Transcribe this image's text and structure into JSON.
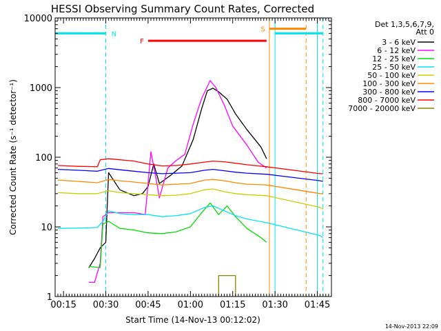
{
  "chart_data": {
    "type": "line",
    "title": "HESSI Observing Summary Count Rates, Corrected",
    "xlabel": "Start Time (14-Nov-13 00:12:02)",
    "ylabel": "Corrected Count Rate (s⁻¹ detector⁻¹)",
    "y_scale": "log",
    "ylim": [
      1,
      10000
    ],
    "xlim": [
      "00:12:02",
      "01:50:00"
    ],
    "x_ticks": [
      "00:15",
      "00:30",
      "00:45",
      "01:00",
      "01:15",
      "01:30",
      "01:45"
    ],
    "y_ticks": [
      "1",
      "10",
      "100",
      "1000",
      "10000"
    ],
    "legend_header": [
      "Det 1,3,5,6,7,9,",
      "Att 0"
    ],
    "legend_position": "right",
    "footer_date": "14-Nov-2013 22:09",
    "series": [
      {
        "name": "3 - 6 keV",
        "color": "#000000",
        "points": [
          [
            "00:24",
            2.6
          ],
          [
            "00:26",
            3.5
          ],
          [
            "00:28",
            5
          ],
          [
            "00:30",
            6
          ],
          [
            "00:31",
            60
          ],
          [
            "00:35",
            34
          ],
          [
            "00:40",
            28
          ],
          [
            "00:43",
            30
          ],
          [
            "00:45",
            38
          ],
          [
            "00:47",
            80
          ],
          [
            "00:49",
            42
          ],
          [
            "00:53",
            55
          ],
          [
            "00:57",
            75
          ],
          [
            "01:01",
            180
          ],
          [
            "01:04",
            500
          ],
          [
            "01:06",
            900
          ],
          [
            "01:08",
            980
          ],
          [
            "01:10",
            870
          ],
          [
            "01:13",
            680
          ],
          [
            "01:16",
            420
          ],
          [
            "01:20",
            250
          ],
          [
            "01:25",
            140
          ],
          [
            "01:27",
            95
          ]
        ]
      },
      {
        "name": "6 - 12 keV",
        "color": "#ff00ff",
        "points": [
          [
            "00:24",
            1.6
          ],
          [
            "00:26",
            1.6
          ],
          [
            "00:28",
            3
          ],
          [
            "00:29",
            14
          ],
          [
            "00:31",
            16
          ],
          [
            "00:35",
            16
          ],
          [
            "00:40",
            16
          ],
          [
            "00:44",
            15
          ],
          [
            "00:46",
            120
          ],
          [
            "00:48",
            45
          ],
          [
            "00:49",
            26
          ],
          [
            "00:52",
            70
          ],
          [
            "00:55",
            90
          ],
          [
            "00:58",
            110
          ],
          [
            "01:01",
            300
          ],
          [
            "01:04",
            700
          ],
          [
            "01:07",
            1260
          ],
          [
            "01:09",
            1000
          ],
          [
            "01:12",
            560
          ],
          [
            "01:15",
            280
          ],
          [
            "01:20",
            150
          ],
          [
            "01:24",
            85
          ],
          [
            "01:27",
            70
          ]
        ]
      },
      {
        "name": "12 - 25 keV",
        "color": "#00dd00",
        "points": [
          [
            "00:24",
            2.7
          ],
          [
            "00:28",
            2.6
          ],
          [
            "00:29",
            11
          ],
          [
            "00:31",
            12
          ],
          [
            "00:35",
            9.5
          ],
          [
            "00:40",
            9
          ],
          [
            "00:45",
            8.2
          ],
          [
            "00:50",
            8
          ],
          [
            "00:55",
            8.5
          ],
          [
            "01:00",
            10
          ],
          [
            "01:04",
            16
          ],
          [
            "01:07",
            22
          ],
          [
            "01:10",
            15
          ],
          [
            "01:13",
            20
          ],
          [
            "01:16",
            14
          ],
          [
            "01:20",
            9.5
          ],
          [
            "01:25",
            7
          ],
          [
            "01:27",
            6
          ]
        ]
      },
      {
        "name": "25 - 50 keV",
        "color": "#00e5ee",
        "points": [
          [
            "00:13",
            9.5
          ],
          [
            "00:20",
            9.6
          ],
          [
            "00:27",
            9.8
          ],
          [
            "00:29",
            12
          ],
          [
            "00:31",
            17
          ],
          [
            "00:35",
            15.5
          ],
          [
            "00:40",
            15
          ],
          [
            "00:45",
            15
          ],
          [
            "00:50",
            14
          ],
          [
            "00:55",
            14.5
          ],
          [
            "01:00",
            15.5
          ],
          [
            "01:05",
            19
          ],
          [
            "01:08",
            20
          ],
          [
            "01:12",
            17
          ],
          [
            "01:16",
            14.5
          ],
          [
            "01:20",
            13
          ],
          [
            "01:27",
            11.5
          ],
          [
            "01:46",
            7.5
          ],
          [
            "01:47",
            7
          ]
        ]
      },
      {
        "name": "50 - 100 keV",
        "color": "#cccc00",
        "points": [
          [
            "00:13",
            31
          ],
          [
            "00:20",
            30
          ],
          [
            "00:27",
            30
          ],
          [
            "00:31",
            33
          ],
          [
            "00:35",
            31
          ],
          [
            "00:40",
            30
          ],
          [
            "00:45",
            29
          ],
          [
            "00:50",
            28
          ],
          [
            "00:55",
            28.5
          ],
          [
            "01:00",
            30
          ],
          [
            "01:05",
            34
          ],
          [
            "01:08",
            35
          ],
          [
            "01:12",
            32
          ],
          [
            "01:16",
            30
          ],
          [
            "01:20",
            29
          ],
          [
            "01:27",
            28
          ],
          [
            "01:46",
            19
          ],
          [
            "01:47",
            18
          ]
        ]
      },
      {
        "name": "100 - 300 keV",
        "color": "#ff8800",
        "points": [
          [
            "00:13",
            47
          ],
          [
            "00:20",
            45
          ],
          [
            "00:27",
            43
          ],
          [
            "00:31",
            48
          ],
          [
            "00:35",
            46
          ],
          [
            "00:40",
            44
          ],
          [
            "00:45",
            42
          ],
          [
            "00:50",
            40
          ],
          [
            "00:55",
            41
          ],
          [
            "01:00",
            42
          ],
          [
            "01:05",
            47
          ],
          [
            "01:08",
            48
          ],
          [
            "01:12",
            46
          ],
          [
            "01:16",
            43
          ],
          [
            "01:20",
            41
          ],
          [
            "01:27",
            40
          ],
          [
            "01:46",
            30
          ],
          [
            "01:47",
            30
          ]
        ]
      },
      {
        "name": "300 - 800 keV",
        "color": "#0000ff",
        "points": [
          [
            "00:13",
            67
          ],
          [
            "00:20",
            65
          ],
          [
            "00:27",
            63
          ],
          [
            "00:31",
            69
          ],
          [
            "00:35",
            66
          ],
          [
            "00:40",
            63
          ],
          [
            "00:45",
            60
          ],
          [
            "00:50",
            58
          ],
          [
            "00:55",
            59
          ],
          [
            "01:00",
            60
          ],
          [
            "01:05",
            65
          ],
          [
            "01:08",
            67
          ],
          [
            "01:12",
            64
          ],
          [
            "01:16",
            61
          ],
          [
            "01:20",
            59
          ],
          [
            "01:27",
            57
          ],
          [
            "01:46",
            46
          ],
          [
            "01:47",
            45
          ]
        ]
      },
      {
        "name": "800 - 7000 keV",
        "color": "#ff0000",
        "points": [
          [
            "00:13",
            76
          ],
          [
            "00:20",
            74
          ],
          [
            "00:27",
            73
          ],
          [
            "00:28",
            92
          ],
          [
            "00:31",
            95
          ],
          [
            "00:35",
            92
          ],
          [
            "00:40",
            88
          ],
          [
            "00:45",
            80
          ],
          [
            "00:50",
            75
          ],
          [
            "00:55",
            76
          ],
          [
            "01:00",
            80
          ],
          [
            "01:05",
            85
          ],
          [
            "01:08",
            88
          ],
          [
            "01:12",
            86
          ],
          [
            "01:16",
            82
          ],
          [
            "01:20",
            78
          ],
          [
            "01:27",
            73
          ],
          [
            "01:46",
            58
          ],
          [
            "01:47",
            58
          ]
        ]
      },
      {
        "name": "7000 - 20000 keV",
        "color": "#888800",
        "points": [
          [
            "01:10",
            1.0
          ],
          [
            "01:10",
            2.0
          ],
          [
            "01:16",
            2.0
          ],
          [
            "01:16",
            1.0
          ]
        ]
      }
    ],
    "bars": [
      {
        "label": "N",
        "color": "#00e5ee",
        "level": 6000,
        "segments": [
          [
            "00:12:02",
            "00:30"
          ],
          [
            "01:30",
            "01:47"
          ]
        ]
      },
      {
        "label": "F",
        "color": "#ff0000",
        "level": 4700,
        "segments": [
          [
            "00:45",
            "01:27"
          ]
        ]
      },
      {
        "label": "S",
        "color": "#ff8800",
        "level": 7000,
        "segments": [
          [
            "01:28",
            "01:41"
          ]
        ]
      }
    ],
    "vlines": [
      {
        "time": "00:30",
        "color": "#00e5ee",
        "style": "dashed"
      },
      {
        "time": "01:28",
        "color": "#ff8800",
        "style": "solid"
      },
      {
        "time": "01:30",
        "color": "#00e5ee",
        "style": "solid"
      },
      {
        "time": "01:41",
        "color": "#ff8800",
        "style": "dashed"
      },
      {
        "time": "01:45",
        "color": "#00e5ee",
        "style": "solid"
      },
      {
        "time": "01:47",
        "color": "#00e5ee",
        "style": "dashed"
      }
    ]
  }
}
